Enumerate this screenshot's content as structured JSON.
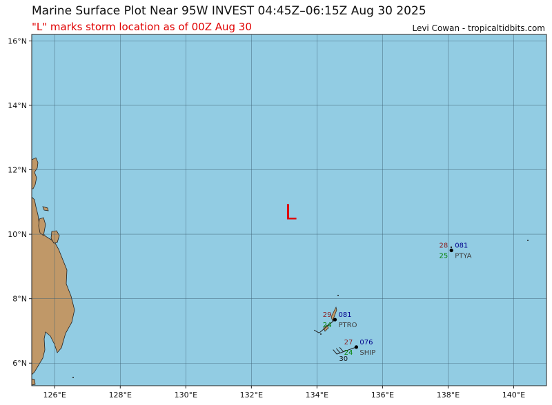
{
  "title": "Marine Surface Plot Near 95W INVEST 04:45Z–06:15Z Aug 30 2025",
  "subtitle": "\"L\" marks storm location as of 00Z Aug 30",
  "credit": "Levi Cowan - tropicaltidbits.com",
  "colors": {
    "ocean": "#92cce3",
    "land": "#c09868",
    "grid": "#3d5f72",
    "storm_marker": "#e00000",
    "temperature": "#8b1a1a",
    "dewpoint": "#008000",
    "pressure": "#00008b",
    "station_id": "#404040"
  },
  "map": {
    "lon_range": [
      125.3,
      141.0
    ],
    "lat_range": [
      5.3,
      16.2
    ],
    "lon_ticks": [
      {
        "value": 126,
        "label": "126°E"
      },
      {
        "value": 128,
        "label": "128°E"
      },
      {
        "value": 130,
        "label": "130°E"
      },
      {
        "value": 132,
        "label": "132°E"
      },
      {
        "value": 134,
        "label": "134°E"
      },
      {
        "value": 136,
        "label": "136°E"
      },
      {
        "value": 138,
        "label": "138°E"
      },
      {
        "value": 140,
        "label": "140°E"
      }
    ],
    "lat_ticks": [
      {
        "value": 6,
        "label": "6°N"
      },
      {
        "value": 8,
        "label": "8°N"
      },
      {
        "value": 10,
        "label": "10°N"
      },
      {
        "value": 12,
        "label": "12°N"
      },
      {
        "value": 14,
        "label": "14°N"
      },
      {
        "value": 16,
        "label": "16°N"
      }
    ],
    "storm_marker": {
      "label": "L",
      "lon": 133.2,
      "lat": 10.7
    }
  },
  "stations": [
    {
      "id": "PTYA",
      "lon": 138.1,
      "lat": 9.5,
      "temp": "28",
      "dewpoint": "25",
      "pressure": "081",
      "wind_speed": "",
      "wind_dir": 0,
      "calm": true
    },
    {
      "id": "PTRO",
      "lon": 134.55,
      "lat": 7.35,
      "temp": "29",
      "dewpoint": "24",
      "pressure": "081",
      "wind_speed": "",
      "wind_dir": 230,
      "calm": false
    },
    {
      "id": "SHIP",
      "lon": 135.2,
      "lat": 6.5,
      "temp": "27",
      "dewpoint": "24",
      "pressure": "076",
      "wind_speed": "30",
      "wind_dir": 250,
      "calm": false
    }
  ]
}
